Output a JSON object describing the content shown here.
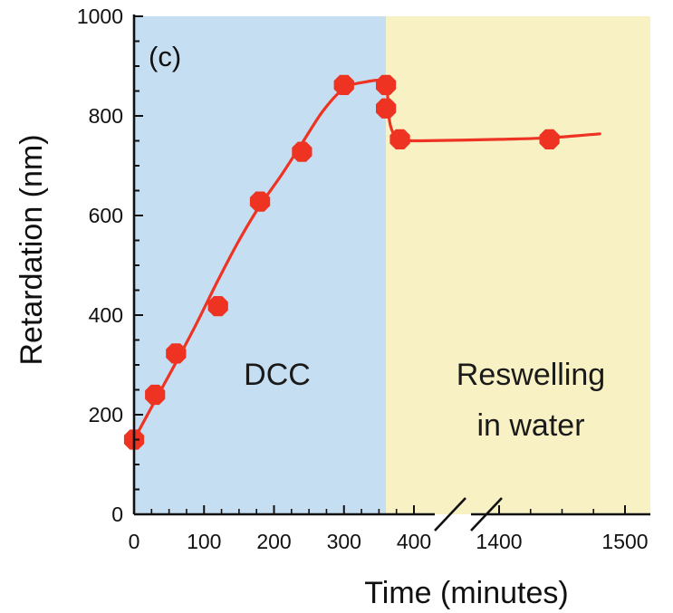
{
  "chart_data": {
    "type": "scatter",
    "panel_label": "(c)",
    "xlabel": "Time (minutes)",
    "ylabel": "Retardation (nm)",
    "ylim": [
      0,
      1000
    ],
    "y_ticks": [
      0,
      200,
      400,
      600,
      800,
      1000
    ],
    "x_axis_break": true,
    "x_tick_labels": [
      "0",
      "100",
      "200",
      "300",
      "400",
      "1400",
      "1500"
    ],
    "x_segments": [
      {
        "name": "before-break",
        "xlim": [
          0,
          420
        ],
        "ticks": [
          0,
          100,
          200,
          300,
          400
        ]
      },
      {
        "name": "after-break",
        "xlim": [
          1320,
          1520
        ],
        "ticks": [
          1400,
          1500
        ]
      }
    ],
    "regions": [
      {
        "label": "DCC",
        "x_start": 0,
        "x_end": 360,
        "color": "#c6def1"
      },
      {
        "label": "Reswelling\nin water",
        "x_start": 360,
        "x_end": 1520,
        "color": "#f7f1c4"
      }
    ],
    "series": [
      {
        "color": "#ee3322",
        "points": [
          {
            "x": 0,
            "y": 150
          },
          {
            "x": 30,
            "y": 240
          },
          {
            "x": 60,
            "y": 323
          },
          {
            "x": 120,
            "y": 418
          },
          {
            "x": 180,
            "y": 628
          },
          {
            "x": 240,
            "y": 728
          },
          {
            "x": 300,
            "y": 862
          },
          {
            "x": 360,
            "y": 862
          },
          {
            "x": 360,
            "y": 815
          },
          {
            "x": 380,
            "y": 753
          },
          {
            "x": 1440,
            "y": 753
          }
        ],
        "fit_curve": [
          {
            "x": 0,
            "y": 150
          },
          {
            "x": 30,
            "y": 228
          },
          {
            "x": 60,
            "y": 305
          },
          {
            "x": 90,
            "y": 385
          },
          {
            "x": 120,
            "y": 470
          },
          {
            "x": 150,
            "y": 550
          },
          {
            "x": 180,
            "y": 620
          },
          {
            "x": 210,
            "y": 680
          },
          {
            "x": 240,
            "y": 745
          },
          {
            "x": 270,
            "y": 810
          },
          {
            "x": 300,
            "y": 855
          },
          {
            "x": 330,
            "y": 868
          },
          {
            "x": 355,
            "y": 870
          },
          {
            "x": 362,
            "y": 845
          },
          {
            "x": 365,
            "y": 790
          },
          {
            "x": 372,
            "y": 762
          },
          {
            "x": 385,
            "y": 752
          },
          {
            "x": 410,
            "y": 750
          },
          {
            "x": 1400,
            "y": 753
          },
          {
            "x": 1440,
            "y": 756
          },
          {
            "x": 1480,
            "y": 764
          }
        ]
      }
    ]
  }
}
